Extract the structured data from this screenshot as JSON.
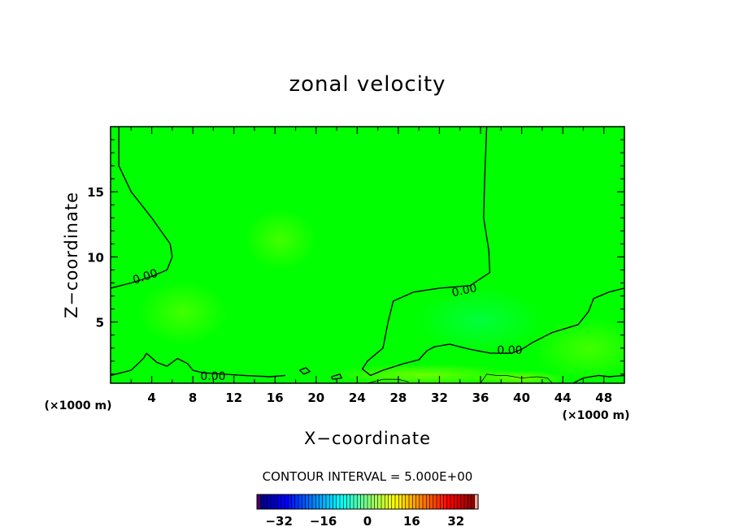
{
  "chart_data": {
    "type": "heatmap",
    "title": "zonal velocity",
    "xlabel": "X−coordinate",
    "ylabel": "Z−coordinate",
    "x_unit": "(×1000 m)",
    "y_unit": "(×1000 m)",
    "xlim": [
      0,
      50
    ],
    "ylim": [
      0.3,
      20
    ],
    "x_ticks": [
      4,
      8,
      12,
      16,
      20,
      24,
      28,
      32,
      36,
      40,
      44,
      48
    ],
    "y_ticks": [
      5,
      10,
      15
    ],
    "contour_interval_text": "CONTOUR INTERVAL = 5.000E+00",
    "contour_labels": [
      "0.00",
      "0.00",
      "0.00",
      "0.00"
    ],
    "colorbar": {
      "range": [
        -40,
        40
      ],
      "ticks": [
        -32,
        -16,
        0,
        16,
        32
      ],
      "tick_labels": [
        "−32",
        "−16",
        "0",
        "16",
        "32"
      ]
    },
    "field_note_colors": {
      "base": "#00ff00",
      "positive": "#66ff00",
      "negative": "#00ff66"
    },
    "contours": [
      {
        "level": 0.0,
        "points": [
          [
            0.8,
            20
          ],
          [
            0.8,
            17
          ],
          [
            2,
            15
          ],
          [
            4,
            13
          ],
          [
            5.8,
            11
          ],
          [
            6,
            10
          ],
          [
            5.5,
            9
          ],
          [
            4,
            8.5
          ],
          [
            2,
            8
          ],
          [
            0,
            7.6
          ]
        ]
      },
      {
        "level": 0.0,
        "points": [
          [
            36.6,
            20
          ],
          [
            36.4,
            16
          ],
          [
            36.3,
            13
          ],
          [
            36.8,
            10.5
          ],
          [
            36.9,
            8.8
          ],
          [
            35,
            7.8
          ],
          [
            32,
            7.6
          ],
          [
            29.5,
            7.3
          ],
          [
            27.5,
            6.6
          ],
          [
            27,
            5
          ],
          [
            26.5,
            3
          ],
          [
            25,
            2
          ],
          [
            24.5,
            1.4
          ],
          [
            25.3,
            0.9
          ],
          [
            26.5,
            1.3
          ],
          [
            28.5,
            1.8
          ],
          [
            30,
            2.1
          ],
          [
            30.8,
            2.8
          ],
          [
            31.5,
            3.1
          ],
          [
            33,
            3.3
          ],
          [
            35,
            2.9
          ],
          [
            37,
            2.6
          ],
          [
            39,
            2.6
          ],
          [
            40,
            2.9
          ],
          [
            41,
            3.4
          ],
          [
            43,
            4.2
          ],
          [
            45.5,
            4.8
          ],
          [
            46.5,
            5.8
          ],
          [
            47,
            6.8
          ],
          [
            48.5,
            7.3
          ],
          [
            50,
            7.6
          ]
        ]
      },
      {
        "level": 0.0,
        "points": [
          [
            0,
            0.9
          ],
          [
            2,
            1.3
          ],
          [
            3.2,
            2.2
          ],
          [
            3.5,
            2.6
          ],
          [
            4.5,
            1.9
          ],
          [
            5.5,
            1.6
          ],
          [
            6.5,
            2.2
          ],
          [
            7.5,
            1.8
          ],
          [
            8,
            1.3
          ],
          [
            9,
            1.1
          ],
          [
            11,
            1.0
          ],
          [
            13,
            0.9
          ],
          [
            15.5,
            0.8
          ],
          [
            17,
            0.9
          ]
        ]
      },
      {
        "level": 0.0,
        "points": [
          [
            18.8,
            1.0
          ],
          [
            19.4,
            1.2
          ],
          [
            19,
            1.5
          ],
          [
            18.4,
            1.3
          ],
          [
            18.8,
            1.0
          ]
        ]
      },
      {
        "level": 0.0,
        "points": [
          [
            21.6,
            0.6
          ],
          [
            22.5,
            0.7
          ],
          [
            22.3,
            1.0
          ],
          [
            21.5,
            0.8
          ],
          [
            21.6,
            0.6
          ]
        ]
      },
      {
        "level": 0.0,
        "points": [
          [
            45,
            0.3
          ],
          [
            46,
            0.7
          ],
          [
            47.5,
            0.9
          ],
          [
            48.5,
            0.8
          ],
          [
            50,
            0.9
          ]
        ]
      },
      {
        "level": 0.0,
        "points": [
          [
            36,
            0.3
          ],
          [
            36.6,
            1.0
          ],
          [
            37.5,
            0.9
          ],
          [
            38.5,
            0.9
          ],
          [
            40,
            0.7
          ],
          [
            41.5,
            0.8
          ],
          [
            42.5,
            0.7
          ],
          [
            43,
            0.3
          ]
        ],
        "thin": true
      },
      {
        "level": 0.0,
        "points": [
          [
            25,
            0.3
          ],
          [
            26.5,
            0.6
          ],
          [
            28,
            0.6
          ],
          [
            29,
            0.4
          ]
        ],
        "thin": true
      }
    ]
  }
}
